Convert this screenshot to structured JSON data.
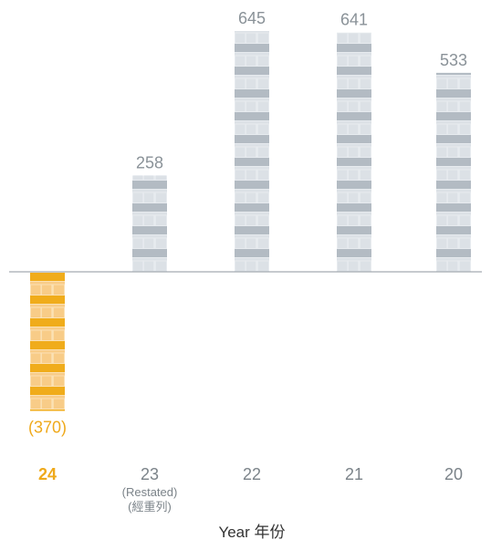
{
  "chart_data": {
    "type": "bar",
    "categories": [
      "24",
      "23",
      "22",
      "21",
      "20"
    ],
    "category_notes": [
      "",
      "(Restated)\n(經重列)",
      "",
      "",
      ""
    ],
    "values": [
      -370,
      258,
      645,
      641,
      533
    ],
    "value_labels": [
      "(370)",
      "258",
      "645",
      "641",
      "533"
    ],
    "title": "",
    "xlabel": "Year 年份",
    "ylabel": "",
    "grid": false,
    "legend": "none",
    "highlight_category": "24",
    "colors": {
      "highlight_dark": "#F0AC1B",
      "highlight_light": "#F8CC88",
      "highlight_lighter": "#FBE1B4",
      "bar_dark": "#B3BBC3",
      "bar_light": "#DCE1E6",
      "bar_lighter": "#E7EBEF",
      "label_highlight": "#EFA91B",
      "label_default": "#8A9298",
      "category_label": "#7B8389",
      "axis_title": "#333333",
      "baseline": "#8E969C"
    }
  }
}
